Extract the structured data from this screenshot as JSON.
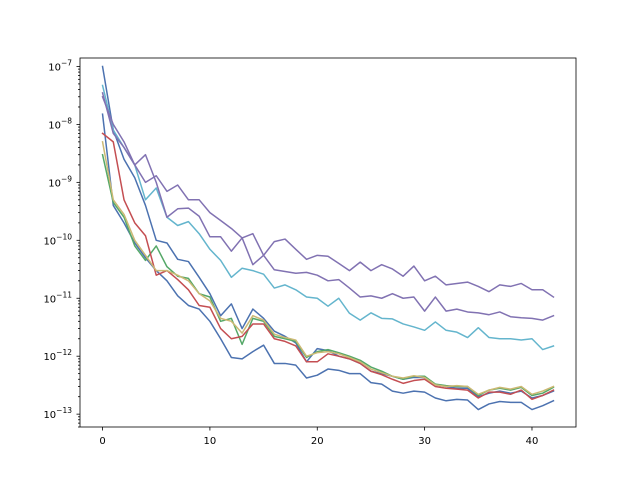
{
  "chart_data": {
    "type": "line",
    "title": "",
    "xlabel": "",
    "ylabel": "",
    "xlim": [
      -2.1,
      44.1
    ],
    "ylim": [
      6e-14,
      1.4e-07
    ],
    "yscale": "log",
    "grid": false,
    "legend": "none",
    "xticks": [
      0,
      10,
      20,
      30,
      40
    ],
    "xtick_labels": [
      "0",
      "10",
      "20",
      "30",
      "40"
    ],
    "yticks": [
      1e-13,
      1e-12,
      1e-11,
      1e-10,
      1e-09,
      1e-08,
      1e-07
    ],
    "ytick_labels": [
      {
        "base": "10",
        "exp": "−13"
      },
      {
        "base": "10",
        "exp": "−12"
      },
      {
        "base": "10",
        "exp": "−11"
      },
      {
        "base": "10",
        "exp": "−10"
      },
      {
        "base": "10",
        "exp": "−9"
      },
      {
        "base": "10",
        "exp": "−8"
      },
      {
        "base": "10",
        "exp": "−7"
      }
    ],
    "x": [
      0,
      1,
      2,
      3,
      4,
      5,
      6,
      7,
      8,
      9,
      10,
      11,
      12,
      13,
      14,
      15,
      16,
      17,
      18,
      19,
      20,
      21,
      22,
      23,
      24,
      25,
      26,
      27,
      28,
      29,
      30,
      31,
      32,
      33,
      34,
      35,
      36,
      37,
      38,
      39,
      40,
      41,
      42
    ],
    "series": [
      {
        "color": "#4c72b0",
        "values": [
          1e-07,
          8e-09,
          2.5e-09,
          1.2e-09,
          4e-10,
          1e-10,
          9e-11,
          4.7e-11,
          4.3e-11,
          2.3e-11,
          1.2e-11,
          5e-12,
          8e-12,
          3e-12,
          6.5e-12,
          4.5e-12,
          2.7e-12,
          2.2e-12,
          1.7e-12,
          8e-13,
          1.35e-12,
          1.25e-12,
          1e-12,
          9e-13,
          7.5e-13,
          5.5e-13,
          5e-13,
          4.5e-13,
          4e-13,
          4.3e-13,
          4.3e-13,
          3.2e-13,
          3e-13,
          2.8e-13,
          2.8e-13,
          2e-13,
          2.3e-13,
          2.5e-13,
          2.3e-13,
          2.5e-13,
          1.9e-13,
          2.1e-13,
          2.5e-13
        ]
      },
      {
        "color": "#4c72b0",
        "values": [
          1.5e-08,
          4e-10,
          2e-10,
          9e-11,
          5e-11,
          3e-11,
          2e-11,
          1.1e-11,
          7.5e-12,
          6.5e-12,
          4e-12,
          2e-12,
          9.5e-13,
          9e-13,
          1.2e-12,
          1.55e-12,
          7.5e-13,
          7.5e-13,
          7e-13,
          4.2e-13,
          4.7e-13,
          6e-13,
          5.7e-13,
          5e-13,
          5e-13,
          3.5e-13,
          3.3e-13,
          2.5e-13,
          2.3e-13,
          2.5e-13,
          2.4e-13,
          1.9e-13,
          1.7e-13,
          1.8e-13,
          1.75e-13,
          1.2e-13,
          1.5e-13,
          1.65e-13,
          1.6e-13,
          1.6e-13,
          1.2e-13,
          1.4e-13,
          1.7e-13
        ]
      },
      {
        "color": "#55a868",
        "values": [
          3e-09,
          4.5e-10,
          2.5e-10,
          8e-11,
          4.5e-11,
          8e-11,
          3.5e-11,
          2.4e-11,
          2.2e-11,
          1.2e-11,
          1.05e-11,
          4e-12,
          4.5e-12,
          1.6e-12,
          4.5e-12,
          4e-12,
          2.2e-12,
          2e-12,
          1.8e-12,
          9.5e-13,
          1.2e-12,
          1.3e-12,
          1.15e-12,
          1e-12,
          8.5e-13,
          6.5e-13,
          5.5e-13,
          4.5e-13,
          4e-13,
          4.5e-13,
          4.5e-13,
          3.3e-13,
          3.1e-13,
          3e-13,
          3e-13,
          2.1e-13,
          2.6e-13,
          2.8e-13,
          2.6e-13,
          2.9e-13,
          2.1e-13,
          2.3e-13,
          2.9e-13
        ]
      },
      {
        "color": "#c44e52",
        "values": [
          7e-09,
          5e-09,
          5e-10,
          2e-10,
          1.2e-10,
          2.5e-11,
          3e-11,
          2.1e-11,
          1.4e-11,
          7.5e-12,
          7e-12,
          3e-12,
          2e-12,
          2.2e-12,
          3.6e-12,
          3.6e-12,
          2e-12,
          1.8e-12,
          1.5e-12,
          8e-13,
          8e-13,
          1.1e-12,
          1e-12,
          9e-13,
          7.5e-13,
          5.5e-13,
          4.8e-13,
          4e-13,
          3.4e-13,
          3.8e-13,
          4e-13,
          3e-13,
          2.8e-13,
          2.7e-13,
          2.6e-13,
          1.9e-13,
          2.4e-13,
          2.4e-13,
          2.2e-13,
          2.6e-13,
          1.8e-13,
          2.1e-13,
          2.6e-13
        ]
      },
      {
        "color": "#ccb974",
        "values": [
          5e-09,
          5e-10,
          2.8e-10,
          1e-10,
          5.5e-11,
          3e-11,
          3e-11,
          2.5e-11,
          2e-11,
          1.2e-11,
          9e-12,
          4.5e-12,
          4e-12,
          2.5e-12,
          5e-12,
          4.2e-12,
          2.4e-12,
          2.1e-12,
          1.9e-12,
          1e-12,
          1.15e-12,
          1.2e-12,
          1.1e-12,
          9.5e-13,
          8e-13,
          6e-13,
          5.2e-13,
          4.5e-13,
          4.2e-13,
          4.6e-13,
          4.3e-13,
          3.2e-13,
          3e-13,
          3.1e-13,
          3e-13,
          2.2e-13,
          2.6e-13,
          2.9e-13,
          2.7e-13,
          3e-13,
          2.2e-13,
          2.5e-13,
          3e-13
        ]
      },
      {
        "color": "#64b5cd",
        "values": [
          4.7e-08,
          8e-09,
          4e-09,
          2e-09,
          5e-10,
          8e-10,
          2.5e-10,
          1.8e-10,
          2.1e-10,
          1.3e-10,
          7e-11,
          4.5e-11,
          2.3e-11,
          3.3e-11,
          3e-11,
          2.6e-11,
          1.5e-11,
          1.7e-11,
          1.4e-11,
          1.05e-11,
          1e-11,
          7.3e-12,
          1e-11,
          5.5e-12,
          4.2e-12,
          5.6e-12,
          4.5e-12,
          4.4e-12,
          3.6e-12,
          3.2e-12,
          2.8e-12,
          3.9e-12,
          2.8e-12,
          2.6e-12,
          2.1e-12,
          3.1e-12,
          2.1e-12,
          2e-12,
          2e-12,
          1.9e-12,
          2e-12,
          1.3e-12,
          1.5e-12
        ]
      },
      {
        "color": "#8172b2",
        "values": [
          3e-08,
          1e-08,
          5e-09,
          2e-09,
          3e-09,
          1e-09,
          2.5e-10,
          3.5e-10,
          3.6e-10,
          2.6e-10,
          1.15e-10,
          1.15e-10,
          6.5e-11,
          1.1e-10,
          3.8e-11,
          5.5e-11,
          3.1e-11,
          2.9e-11,
          2.7e-11,
          2.8e-11,
          2.5e-11,
          2e-11,
          2.1e-11,
          1.5e-11,
          1.05e-11,
          1.1e-11,
          1e-11,
          1.2e-11,
          1e-11,
          1.05e-11,
          6e-12,
          1.05e-11,
          6e-12,
          6.5e-12,
          5.8e-12,
          5.6e-12,
          5.2e-12,
          5.8e-12,
          4.8e-12,
          4.6e-12,
          4.5e-12,
          4.2e-12,
          5e-12
        ]
      },
      {
        "color": "#8172b2",
        "values": [
          3.5e-08,
          7e-09,
          4e-09,
          2e-09,
          1e-09,
          1.3e-09,
          7e-10,
          9e-10,
          5e-10,
          5e-10,
          3e-10,
          2.2e-10,
          1.6e-10,
          1.1e-10,
          1.3e-10,
          5.5e-11,
          9.5e-11,
          1.05e-10,
          7e-11,
          4.7e-11,
          5.5e-11,
          5.3e-11,
          4e-11,
          3e-11,
          4.2e-11,
          3e-11,
          3.8e-11,
          3.2e-11,
          2.4e-11,
          3.6e-11,
          2e-11,
          2.4e-11,
          1.7e-11,
          1.8e-11,
          1.9e-11,
          1.6e-11,
          1.3e-11,
          1.7e-11,
          1.6e-11,
          1.8e-11,
          1.4e-11,
          1.4e-11,
          1.05e-11
        ]
      }
    ]
  }
}
